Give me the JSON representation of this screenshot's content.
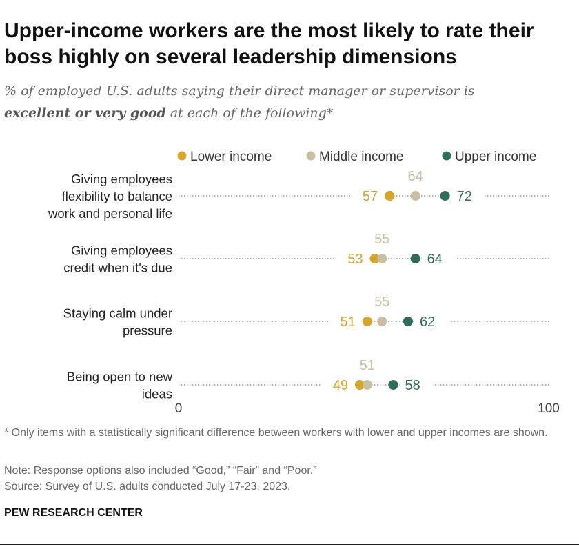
{
  "title": "Upper-income workers are the most likely to rate their boss highly on several leadership dimensions",
  "subtitle": {
    "line1": "% of employed U.S. adults saying their direct manager or supervisor is",
    "line2_bold": "excellent or very good",
    "line2_rest": " at each of the following*"
  },
  "chart_data": {
    "type": "scatter",
    "subtype": "dot-plot",
    "xlim": [
      0,
      100
    ],
    "x_ticks": [
      "0",
      "100"
    ],
    "legend_placement": "top",
    "categories": [
      [
        "Giving employees",
        "flexibility to balance",
        "work and personal life"
      ],
      [
        "Giving employees",
        "credit when it's due"
      ],
      [
        "Staying calm under",
        "pressure"
      ],
      [
        "Being open to new",
        "ideas"
      ]
    ],
    "series": [
      {
        "name": "Lower income",
        "color": "#d6a52a",
        "values": [
          57,
          53,
          51,
          49
        ]
      },
      {
        "name": "Middle income",
        "color": "#c9c0a3",
        "values": [
          64,
          55,
          55,
          51
        ]
      },
      {
        "name": "Upper income",
        "color": "#2f6e5f",
        "values": [
          72,
          64,
          62,
          58
        ]
      }
    ]
  },
  "footnotes": {
    "star": "* Only items with a statistically significant difference between workers with lower and upper incomes are shown.",
    "note": "Note: Response options also included “Good,” “Fair” and “Poor.”",
    "source": "Source: Survey of U.S. adults conducted July 17-23, 2023."
  },
  "org": "PEW RESEARCH CENTER"
}
